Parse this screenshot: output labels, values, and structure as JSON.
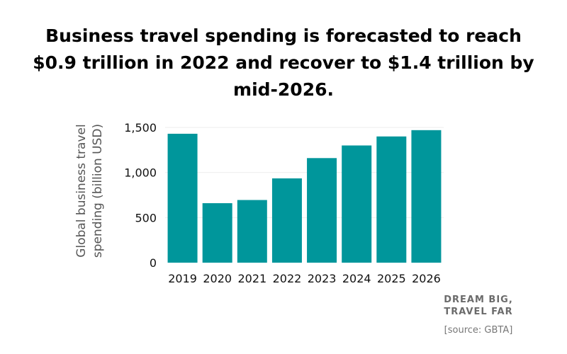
{
  "title": "Business travel spending is forecasted to reach $0.9 trillion in 2022 and recover to $1.4 trillion by mid-2026.",
  "brand": {
    "line1": "DREAM BIG,",
    "line2": "TRAVEL FAR"
  },
  "source": "[source: GBTA]",
  "colors": {
    "bar": "#00969b",
    "gridline": "#eeeeee"
  },
  "chart_data": {
    "type": "bar",
    "categories": [
      "2019",
      "2020",
      "2021",
      "2022",
      "2023",
      "2024",
      "2025",
      "2026"
    ],
    "values": [
      1430,
      660,
      695,
      935,
      1160,
      1300,
      1400,
      1470
    ],
    "ylabel": "Global business travel spending (billion USD)",
    "ylabel_lines": [
      "Global business travel",
      "spending (billion USD)"
    ],
    "ylim": [
      0,
      1500
    ],
    "yticks": [
      0,
      500,
      1000,
      1500
    ],
    "ytick_labels": [
      "0",
      "500",
      "1,000",
      "1,500"
    ],
    "grid": "horizontal, light"
  }
}
